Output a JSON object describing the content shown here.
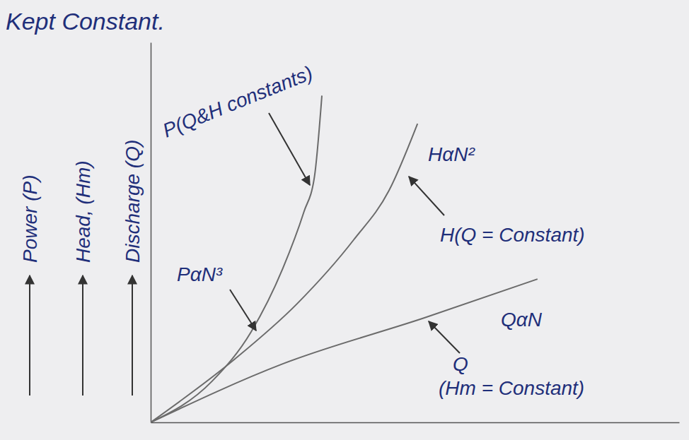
{
  "chart_data": {
    "type": "line",
    "title": "Kept Constant.",
    "y_label": [
      "Power (P)",
      "Head, (Hm)",
      "Discharge (Q)"
    ],
    "xlim": [
      0,
      10
    ],
    "ylim": [
      0,
      10
    ],
    "tick_labels": false,
    "grid": false,
    "series": [
      {
        "color": "#6b6b6b",
        "x": [
          0,
          1.16,
          1.9,
          2.5,
          2.9,
          3.1,
          3.24
        ],
        "values": [
          0,
          1.08,
          2.38,
          4.05,
          5.54,
          6.47,
          8.6
        ]
      },
      {
        "color": "#6b6b6b",
        "x": [
          0,
          1.57,
          2.77,
          3.84,
          4.51,
          5.05
        ],
        "values": [
          0,
          1.64,
          3.12,
          4.8,
          6.1,
          7.86
        ]
      },
      {
        "color": "#6b6b6b",
        "x": [
          0,
          2.5,
          5.18,
          7.32
        ],
        "values": [
          0,
          1.54,
          2.75,
          3.77
        ]
      }
    ],
    "annotations": [
      "P(Q&H constants)",
      "PαN³",
      "HαN²",
      "H(Q = Constant)",
      "QαN",
      "Q (Hm = Constant)"
    ]
  }
}
